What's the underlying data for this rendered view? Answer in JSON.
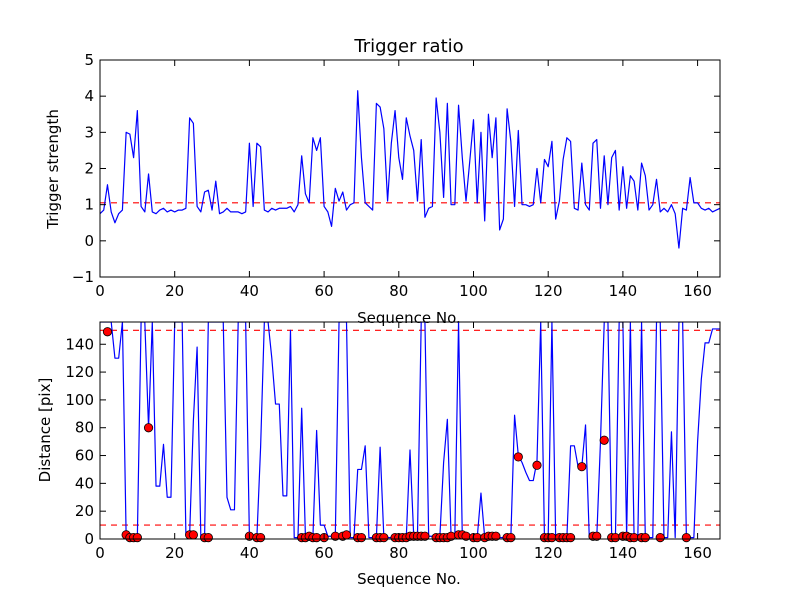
{
  "chart_data": [
    {
      "type": "line",
      "title": "Trigger ratio",
      "xlabel": "Sequence No.",
      "ylabel": "Trigger strength",
      "xlim": [
        0,
        166
      ],
      "ylim": [
        -1,
        5
      ],
      "xticks": [
        0,
        20,
        40,
        60,
        80,
        100,
        120,
        140,
        160
      ],
      "yticks": [
        -1,
        0,
        1,
        2,
        3,
        4,
        5
      ],
      "reference_lines": [
        {
          "y": 1.05,
          "color": "#ff0000",
          "style": "dashed"
        }
      ],
      "series": [
        {
          "color": "#0000ff",
          "x": [
            0,
            1,
            2,
            3,
            4,
            5,
            6,
            7,
            8,
            9,
            10,
            11,
            12,
            13,
            14,
            15,
            16,
            17,
            18,
            19,
            20,
            21,
            22,
            23,
            24,
            25,
            26,
            27,
            28,
            29,
            30,
            31,
            32,
            33,
            34,
            35,
            36,
            37,
            38,
            39,
            40,
            41,
            42,
            43,
            44,
            45,
            46,
            47,
            48,
            49,
            50,
            51,
            52,
            53,
            54,
            55,
            56,
            57,
            58,
            59,
            60,
            61,
            62,
            63,
            64,
            65,
            66,
            67,
            68,
            69,
            70,
            71,
            72,
            73,
            74,
            75,
            76,
            77,
            78,
            79,
            80,
            81,
            82,
            83,
            84,
            85,
            86,
            87,
            88,
            89,
            90,
            91,
            92,
            93,
            94,
            95,
            96,
            97,
            98,
            99,
            100,
            101,
            102,
            103,
            104,
            105,
            106,
            107,
            108,
            109,
            110,
            111,
            112,
            113,
            114,
            115,
            116,
            117,
            118,
            119,
            120,
            121,
            122,
            123,
            124,
            125,
            126,
            127,
            128,
            129,
            130,
            131,
            132,
            133,
            134,
            135,
            136,
            137,
            138,
            139,
            140,
            141,
            142,
            143,
            144,
            145,
            146,
            147,
            148,
            149,
            150,
            151,
            152,
            153,
            154,
            155,
            156,
            157,
            158,
            159,
            160,
            161,
            162,
            163,
            164,
            165,
            166
          ],
          "y": [
            0.75,
            0.85,
            1.55,
            0.8,
            0.5,
            0.75,
            0.85,
            3.0,
            2.95,
            2.3,
            3.6,
            0.95,
            0.8,
            1.85,
            0.8,
            0.75,
            0.85,
            0.9,
            0.8,
            0.85,
            0.8,
            0.85,
            0.85,
            0.9,
            3.4,
            3.25,
            0.95,
            0.8,
            1.35,
            1.4,
            0.85,
            1.65,
            0.75,
            0.8,
            0.9,
            0.8,
            0.8,
            0.8,
            0.75,
            0.8,
            2.7,
            0.95,
            2.7,
            2.6,
            0.85,
            0.8,
            0.9,
            0.85,
            0.9,
            0.9,
            0.9,
            0.95,
            0.8,
            1.0,
            2.35,
            1.3,
            1.05,
            2.85,
            2.5,
            2.85,
            0.95,
            0.8,
            0.4,
            1.45,
            1.1,
            1.35,
            0.85,
            1.0,
            1.05,
            4.15,
            2.3,
            1.05,
            0.95,
            0.85,
            3.8,
            3.7,
            3.1,
            1.1,
            2.7,
            3.6,
            2.3,
            1.7,
            3.4,
            2.9,
            2.5,
            1.1,
            2.8,
            0.65,
            0.9,
            0.95,
            3.95,
            3.0,
            1.2,
            3.8,
            1.0,
            1.0,
            3.75,
            2.3,
            1.1,
            2.2,
            3.35,
            1.05,
            3.0,
            0.55,
            3.5,
            2.3,
            3.4,
            0.3,
            0.6,
            3.65,
            2.75,
            0.95,
            3.05,
            1.0,
            1.0,
            0.95,
            1.0,
            2.0,
            1.05,
            2.25,
            2.05,
            2.75,
            0.6,
            1.1,
            2.25,
            2.85,
            2.75,
            0.9,
            0.85,
            2.15,
            1.0,
            0.85,
            2.7,
            2.8,
            0.9,
            2.35,
            1.0,
            2.3,
            2.5,
            0.85,
            2.05,
            0.9,
            1.8,
            1.65,
            0.85,
            2.15,
            1.8,
            0.85,
            1.0,
            1.7,
            0.8,
            0.9,
            0.8,
            1.0,
            0.75,
            -0.2,
            0.9,
            0.85,
            1.75,
            1.05,
            1.05,
            0.9,
            0.85,
            0.9,
            0.8,
            0.85,
            0.9
          ]
        }
      ]
    },
    {
      "type": "line",
      "title": "",
      "xlabel": "Sequence No.",
      "ylabel": "Distance [pix]",
      "xlim": [
        0,
        166
      ],
      "ylim": [
        0,
        156
      ],
      "xticks": [
        0,
        20,
        40,
        60,
        80,
        100,
        120,
        140,
        160
      ],
      "yticks": [
        0,
        20,
        40,
        60,
        80,
        100,
        120,
        140
      ],
      "reference_lines": [
        {
          "y": 150,
          "color": "#ff0000",
          "style": "dashed"
        },
        {
          "y": 10,
          "color": "#ff0000",
          "style": "dashed"
        }
      ],
      "series": [
        {
          "color": "#0000ff",
          "x": [
            0,
            1,
            2,
            3,
            4,
            5,
            6,
            7,
            8,
            9,
            10,
            11,
            12,
            13,
            14,
            15,
            16,
            17,
            18,
            19,
            20,
            21,
            22,
            23,
            24,
            25,
            26,
            27,
            28,
            29,
            30,
            31,
            32,
            33,
            34,
            35,
            36,
            37,
            38,
            39,
            40,
            41,
            42,
            43,
            44,
            45,
            46,
            47,
            48,
            49,
            50,
            51,
            52,
            53,
            54,
            55,
            56,
            57,
            58,
            59,
            60,
            61,
            62,
            63,
            64,
            65,
            66,
            67,
            68,
            69,
            70,
            71,
            72,
            73,
            74,
            75,
            76,
            77,
            78,
            79,
            80,
            81,
            82,
            83,
            84,
            85,
            86,
            87,
            88,
            89,
            90,
            91,
            92,
            93,
            94,
            95,
            96,
            97,
            98,
            99,
            100,
            101,
            102,
            103,
            104,
            105,
            106,
            107,
            108,
            109,
            110,
            111,
            112,
            113,
            114,
            115,
            116,
            117,
            118,
            119,
            120,
            121,
            122,
            123,
            124,
            125,
            126,
            127,
            128,
            129,
            130,
            131,
            132,
            133,
            134,
            135,
            136,
            137,
            138,
            139,
            140,
            141,
            142,
            143,
            144,
            145,
            146,
            147,
            148,
            149,
            150,
            151,
            152,
            153,
            154,
            155,
            156,
            157,
            158,
            159,
            160,
            161,
            162,
            163,
            164,
            165,
            166
          ],
          "y": [
            156,
            156,
            156,
            156,
            130,
            130,
            156,
            2,
            2,
            1,
            1,
            156,
            156,
            80,
            156,
            38,
            38,
            68,
            30,
            30,
            156,
            156,
            156,
            3,
            3,
            85,
            138,
            1,
            1,
            156,
            156,
            156,
            156,
            156,
            30,
            21,
            21,
            156,
            156,
            156,
            2,
            1,
            1,
            66,
            156,
            156,
            130,
            97,
            97,
            31,
            31,
            150,
            1,
            1,
            94,
            2,
            2,
            1,
            78,
            10,
            10,
            2,
            2,
            2,
            156,
            156,
            156,
            1,
            1,
            50,
            50,
            67,
            1,
            1,
            1,
            66,
            1,
            1,
            1,
            1,
            1,
            1,
            1,
            64,
            2,
            2,
            156,
            156,
            2,
            2,
            2,
            2,
            55,
            86,
            2,
            2,
            156,
            2,
            2,
            1,
            1,
            1,
            33,
            1,
            2,
            2,
            1,
            1,
            1,
            1,
            1,
            89,
            60,
            55,
            48,
            42,
            42,
            56,
            156,
            1,
            1,
            156,
            1,
            1,
            1,
            1,
            67,
            67,
            52,
            52,
            82,
            1,
            1,
            1,
            70,
            156,
            156,
            1,
            1,
            156,
            156,
            2,
            156,
            1,
            1,
            156,
            1,
            1,
            1,
            156,
            156,
            1,
            1,
            77,
            1,
            156,
            156,
            1,
            1,
            1,
            70,
            115,
            141,
            141,
            151,
            151,
            151
          ]
        }
      ],
      "markers": {
        "color": "#ff0000",
        "x": [
          2,
          7,
          8,
          9,
          10,
          13,
          24,
          25,
          28,
          29,
          40,
          42,
          43,
          54,
          55,
          56,
          57,
          58,
          60,
          63,
          65,
          66,
          69,
          70,
          74,
          75,
          76,
          79,
          80,
          81,
          82,
          83,
          84,
          85,
          86,
          87,
          90,
          91,
          92,
          93,
          94,
          96,
          97,
          98,
          100,
          101,
          103,
          104,
          105,
          106,
          109,
          110,
          112,
          117,
          119,
          120,
          121,
          123,
          124,
          125,
          126,
          129,
          132,
          133,
          135,
          137,
          138,
          140,
          141,
          142,
          143,
          145,
          146,
          150,
          157
        ],
        "y": [
          149,
          3,
          1,
          1,
          1,
          80,
          3,
          3,
          1,
          1,
          2,
          1,
          1,
          1,
          1,
          2,
          1,
          1,
          1,
          2,
          2,
          3,
          1,
          1,
          1,
          1,
          1,
          1,
          1,
          1,
          1,
          2,
          2,
          2,
          2,
          2,
          1,
          1,
          1,
          1,
          2,
          3,
          3,
          2,
          1,
          1,
          1,
          2,
          2,
          2,
          1,
          1,
          59,
          53,
          1,
          1,
          1,
          1,
          1,
          1,
          1,
          52,
          2,
          2,
          71,
          1,
          1,
          2,
          2,
          1,
          1,
          1,
          1,
          1,
          1
        ]
      }
    }
  ]
}
